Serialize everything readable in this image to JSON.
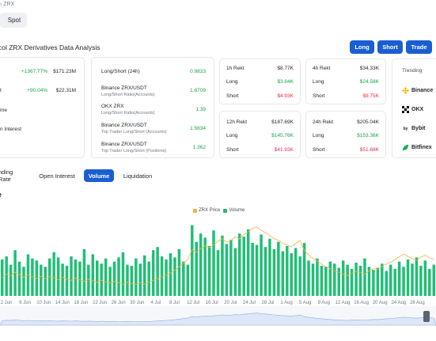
{
  "breadcrumb": {
    "tail": "ZRX"
  },
  "tabs": {
    "spot": "Spot"
  },
  "page_title": "col ZRX Derivatives Data Analysis",
  "actions": {
    "long": "Long",
    "short": "Short",
    "trade": "Trade"
  },
  "stats": {
    "row1": {
      "change": "+1367.77%",
      "value": "$171.23M"
    },
    "row2": {
      "label": "t",
      "change": "+90.04%",
      "value": "$22.31M"
    },
    "row3": {
      "label": "me"
    },
    "row4": {
      "label": "n Interest"
    }
  },
  "ratios": {
    "ls24": {
      "label": "Long/Short (24h)",
      "value": "0.9833"
    },
    "binance_acc": {
      "label": "Binance ZRX/USDT",
      "sub": "Long/Short Ratio(Accounts)",
      "value": "1.6709"
    },
    "okx_acc": {
      "label": "OKX ZRX",
      "sub": "Long/Short Ratio(Accounts)",
      "value": "1.39"
    },
    "binance_top_acc": {
      "label": "Binance ZRX/USDT",
      "sub": "Top Trader Long/Short (Accounts)",
      "value": "1.5634"
    },
    "binance_top_pos": {
      "label": "Binance ZRX/USDT",
      "sub": "Top Trader Long/Short (Positions)",
      "value": "1.362"
    }
  },
  "rekt": {
    "h1": {
      "title": "1h Rekt",
      "total": "$8.77K",
      "long_label": "Long",
      "long": "$3.84K",
      "short_label": "Short",
      "short": "$4.93K"
    },
    "h4": {
      "title": "4h Rekt",
      "total": "$34.33K",
      "long_label": "Long",
      "long": "$24.58K",
      "short_label": "Short",
      "short": "$9.75K"
    },
    "h12": {
      "title": "12h Rekt",
      "total": "$187.69K",
      "long_label": "Long",
      "long": "$145.76K",
      "short_label": "Short",
      "short": "$41.93K"
    },
    "h24": {
      "title": "24h Rekt",
      "total": "$205.04K",
      "long_label": "Long",
      "long": "$153.36K",
      "short_label": "Short",
      "short": "$51.68K"
    }
  },
  "trending": {
    "title": "Trending",
    "items": [
      "Binance",
      "OKX",
      "Bybit",
      "Bitfinex"
    ],
    "colors": {
      "binance": "#f0b90b",
      "okx": "#000000",
      "bybit": "#1e2329",
      "bitfinex": "#16b157"
    }
  },
  "subtabs": [
    "nding Rate",
    "Open Interest",
    "Volume",
    "Liquidation"
  ],
  "active_subtab": "Volume",
  "chart_section_title": "e",
  "chart_data": {
    "type": "bar",
    "title": "",
    "legend": [
      "ZRX Price",
      "Volume"
    ],
    "legend_placement": "top-center",
    "colors": {
      "price": "#f5b041",
      "volume": "#1fbf75",
      "accent": "#1a5ed1"
    },
    "x_ticks": [
      "2 Jun",
      "6 Jun",
      "10 Jun",
      "14 Jun",
      "18 Jun",
      "22 Jun",
      "26 Jun",
      "30 Jun",
      "4 Jul",
      "8 Jul",
      "12 Jul",
      "16 Jul",
      "20 Jul",
      "24 Jul",
      "28 Jul",
      "1 Aug",
      "5 Aug",
      "9 Aug",
      "12 Aug",
      "16 Aug",
      "20 Aug",
      "24 Aug",
      "28 Aug"
    ],
    "series": [
      {
        "name": "Volume",
        "values": [
          35,
          38,
          30,
          44,
          33,
          28,
          40,
          36,
          34,
          30,
          28,
          36,
          42,
          37,
          31,
          29,
          38,
          35,
          33,
          45,
          30,
          40,
          34,
          31,
          36,
          28,
          33,
          37,
          42,
          30,
          29,
          36,
          31,
          39,
          33,
          44,
          47,
          38,
          35,
          41,
          37,
          45,
          33,
          30,
          68,
          52,
          60,
          56,
          48,
          63,
          44,
          58,
          50,
          54,
          46,
          60,
          57,
          64,
          51,
          49,
          59,
          47,
          55,
          45,
          52,
          43,
          48,
          41,
          46,
          38,
          51,
          34,
          31,
          36,
          29,
          28,
          33,
          31,
          27,
          34,
          30,
          26,
          32,
          29,
          36,
          28,
          25,
          27,
          31,
          24,
          30,
          26,
          33,
          28,
          35,
          31,
          37,
          29,
          34,
          26,
          30
        ]
      },
      {
        "name": "ZRX Price",
        "values": [
          0.31,
          0.318,
          0.314,
          0.322,
          0.317,
          0.311,
          0.316,
          0.312,
          0.309,
          0.313,
          0.308,
          0.312,
          0.31,
          0.306,
          0.311,
          0.307,
          0.304,
          0.309,
          0.305,
          0.302,
          0.306,
          0.303,
          0.3,
          0.304,
          0.301,
          0.298,
          0.302,
          0.299,
          0.296,
          0.3,
          0.297,
          0.295,
          0.299,
          0.296,
          0.3,
          0.304,
          0.308,
          0.312,
          0.316,
          0.32,
          0.326,
          0.334,
          0.342,
          0.35,
          0.372,
          0.366,
          0.374,
          0.38,
          0.376,
          0.382,
          0.39,
          0.396,
          0.388,
          0.392,
          0.4,
          0.395,
          0.405,
          0.411,
          0.418,
          0.422,
          0.414,
          0.409,
          0.402,
          0.396,
          0.392,
          0.386,
          0.382,
          0.378,
          0.386,
          0.392,
          0.37,
          0.36,
          0.352,
          0.346,
          0.34,
          0.334,
          0.33,
          0.325,
          0.322,
          0.318,
          0.315,
          0.32,
          0.324,
          0.321,
          0.318,
          0.325,
          0.33,
          0.328,
          0.335,
          0.34,
          0.344,
          0.35,
          0.356,
          0.362,
          0.357,
          0.352,
          0.348,
          0.355,
          0.36,
          0.354,
          0.35
        ]
      }
    ]
  }
}
